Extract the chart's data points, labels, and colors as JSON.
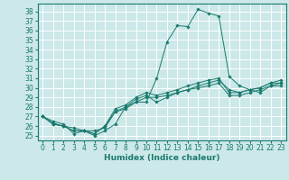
{
  "xlabel": "Humidex (Indice chaleur)",
  "bg_color": "#cce8e8",
  "grid_color": "#ffffff",
  "line_color": "#1a7a6e",
  "xlim": [
    -0.5,
    23.5
  ],
  "ylim": [
    24.5,
    38.8
  ],
  "yticks": [
    25,
    26,
    27,
    28,
    29,
    30,
    31,
    32,
    33,
    34,
    35,
    36,
    37,
    38
  ],
  "xticks": [
    0,
    1,
    2,
    3,
    4,
    5,
    6,
    7,
    8,
    9,
    10,
    11,
    12,
    13,
    14,
    15,
    16,
    17,
    18,
    19,
    20,
    21,
    22,
    23
  ],
  "series": [
    [
      27.0,
      26.5,
      26.2,
      25.2,
      25.5,
      25.0,
      25.5,
      26.2,
      28.0,
      28.5,
      28.5,
      31.0,
      34.8,
      36.5,
      36.4,
      38.2,
      37.8,
      37.5,
      31.2,
      30.2,
      29.8,
      29.5,
      30.2,
      30.5
    ],
    [
      27.0,
      26.3,
      26.0,
      25.8,
      25.5,
      25.5,
      25.8,
      27.5,
      28.0,
      28.8,
      29.2,
      28.5,
      29.0,
      29.5,
      29.8,
      30.2,
      30.5,
      30.8,
      29.8,
      29.5,
      29.8,
      30.0,
      30.5,
      30.8
    ],
    [
      27.0,
      26.2,
      26.0,
      25.5,
      25.5,
      25.2,
      26.0,
      27.8,
      28.2,
      29.0,
      29.5,
      29.2,
      29.5,
      29.8,
      30.2,
      30.5,
      30.8,
      31.0,
      29.5,
      29.5,
      29.8,
      30.0,
      30.5,
      30.5
    ],
    [
      27.0,
      26.2,
      26.0,
      25.5,
      25.5,
      25.2,
      26.0,
      27.5,
      27.8,
      28.5,
      29.0,
      29.0,
      29.2,
      29.5,
      29.8,
      30.0,
      30.2,
      30.5,
      29.2,
      29.2,
      29.5,
      29.8,
      30.2,
      30.2
    ]
  ],
  "tick_fontsize": 5.5,
  "xlabel_fontsize": 6.5
}
